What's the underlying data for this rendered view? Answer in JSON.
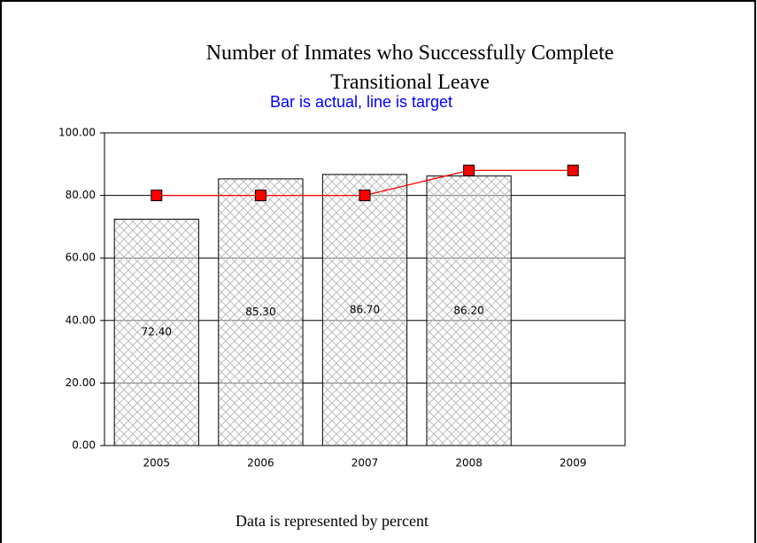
{
  "chart_data": {
    "type": "bar",
    "title": "Number of Inmates who Successfully Complete Transitional Leave",
    "subtitle": "Bar is actual, line is target",
    "footer": "Data is represented by percent",
    "categories": [
      "2005",
      "2006",
      "2007",
      "2008",
      "2009"
    ],
    "series": [
      {
        "type": "bar",
        "color": "#ffffff",
        "values": [
          72.4,
          85.3,
          86.7,
          86.2,
          null
        ],
        "value_labels": [
          "72.40",
          "85.30",
          "86.70",
          "86.20",
          null
        ]
      },
      {
        "type": "line",
        "color": "#ff0000",
        "values": [
          80,
          80,
          80,
          88,
          88
        ]
      }
    ],
    "ylim": [
      0,
      100
    ],
    "yticks": [
      {
        "value": 0,
        "label": "0.00"
      },
      {
        "value": 20,
        "label": "20.00"
      },
      {
        "value": 40,
        "label": "40.00"
      },
      {
        "value": 60,
        "label": "60.00"
      },
      {
        "value": 80,
        "label": "80.00"
      },
      {
        "value": 100,
        "label": "100.00"
      }
    ],
    "grid": true
  }
}
